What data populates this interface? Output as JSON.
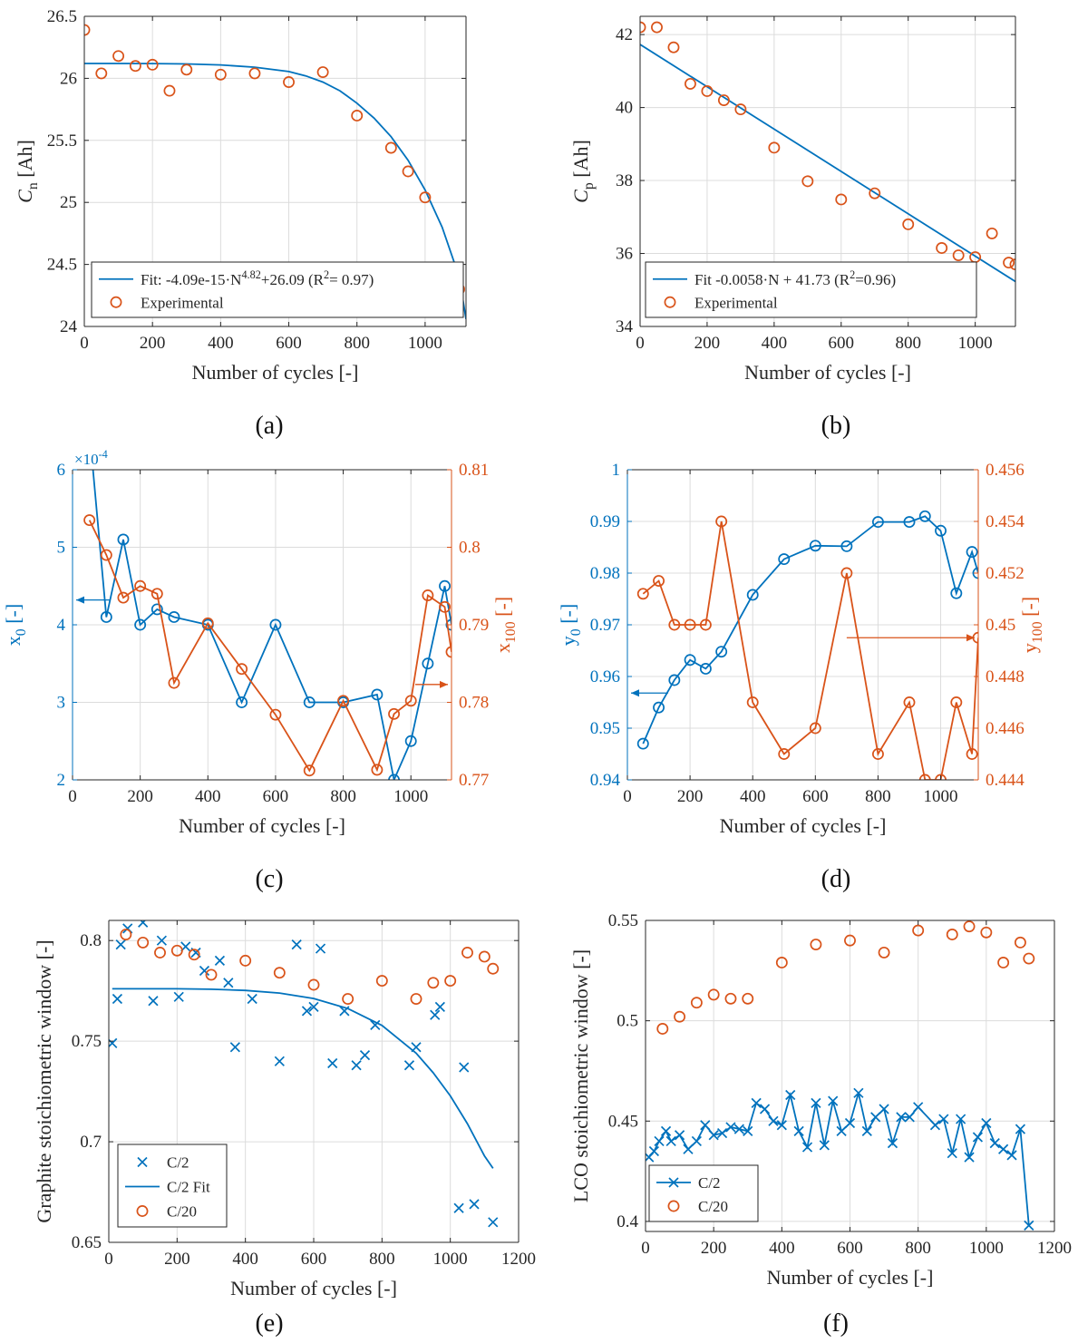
{
  "figure": {
    "colors": {
      "blue": "#0072BD",
      "orange": "#D95319",
      "axis": "#262626",
      "grid": "#dcdcdc"
    }
  },
  "chart_data": [
    {
      "id": "a",
      "panel_label": "(a)",
      "type": "scatter",
      "xlabel": "Number of cycles [-]",
      "ylabel": "C_n [Ah]",
      "xlim": [
        0,
        1120
      ],
      "ylim": [
        24,
        26.5
      ],
      "xticks": [
        0,
        200,
        400,
        600,
        800,
        1000
      ],
      "yticks": [
        24,
        24.5,
        25,
        25.5,
        26,
        26.5
      ],
      "ytick_labels": [
        "24",
        "24.5",
        "25",
        "25.5",
        "26",
        "26.5"
      ],
      "grid": true,
      "legend_position": "bottom-left",
      "series": [
        {
          "name": "Fit: -4.09e-15·N^4.82+26.09 (R^2= 0.97)",
          "kind": "line",
          "color": "#0072BD",
          "x": [
            0,
            100,
            200,
            300,
            400,
            500,
            600,
            650,
            700,
            750,
            800,
            850,
            900,
            950,
            1000,
            1050,
            1100,
            1120
          ],
          "y": [
            26.12,
            26.12,
            26.119,
            26.116,
            26.108,
            26.09,
            26.055,
            26.02,
            25.97,
            25.9,
            25.8,
            25.68,
            25.53,
            25.34,
            25.1,
            24.8,
            24.4,
            24.06
          ]
        },
        {
          "name": "Experimental",
          "kind": "points",
          "marker": "o",
          "color": "#D95319",
          "x": [
            0,
            50,
            100,
            150,
            200,
            250,
            300,
            400,
            500,
            600,
            700,
            800,
            900,
            950,
            1000,
            1050,
            1100
          ],
          "y": [
            26.39,
            26.04,
            26.18,
            26.1,
            26.11,
            25.9,
            26.07,
            26.03,
            26.04,
            25.97,
            26.05,
            25.7,
            25.44,
            25.25,
            25.04,
            24.36,
            24.3
          ]
        }
      ],
      "legend": [
        {
          "label": "Fit: -4.09e-15·N^4.82+26.09 (R^2= 0.97)",
          "type": "line"
        },
        {
          "label": "Experimental",
          "type": "circle"
        }
      ]
    },
    {
      "id": "b",
      "panel_label": "(b)",
      "type": "scatter",
      "xlabel": "Number of cycles [-]",
      "ylabel": "C_p [Ah]",
      "xlim": [
        0,
        1120
      ],
      "ylim": [
        34,
        42.5
      ],
      "xticks": [
        0,
        200,
        400,
        600,
        800,
        1000
      ],
      "yticks": [
        34,
        36,
        38,
        40,
        42
      ],
      "ytick_labels": [
        "34",
        "36",
        "38",
        "40",
        "42"
      ],
      "grid": true,
      "legend_position": "bottom-left",
      "series": [
        {
          "name": "Fit -0.0058·N + 41.73 (R^2=0.96)",
          "kind": "line",
          "color": "#0072BD",
          "x": [
            0,
            1120
          ],
          "y": [
            41.73,
            35.23
          ]
        },
        {
          "name": "Experimental",
          "kind": "points",
          "marker": "o",
          "color": "#D95319",
          "x": [
            0,
            50,
            100,
            150,
            200,
            250,
            300,
            400,
            500,
            600,
            700,
            800,
            900,
            950,
            1000,
            1050,
            1100,
            1120
          ],
          "y": [
            42.2,
            42.2,
            41.65,
            40.65,
            40.45,
            40.2,
            39.95,
            38.9,
            37.98,
            37.48,
            37.65,
            36.8,
            36.15,
            35.95,
            35.9,
            36.55,
            35.75,
            35.7
          ]
        }
      ],
      "legend": [
        {
          "label": "Fit -0.0058·N + 41.73 (R^2=0.96)",
          "type": "line"
        },
        {
          "label": "Experimental",
          "type": "circle"
        }
      ]
    },
    {
      "id": "c",
      "panel_label": "(c)",
      "type": "line",
      "xlabel": "Number of cycles [-]",
      "ylabel": "x_0 [-]",
      "ylabel_right": "x_100 [-]",
      "multiplier": "×10^-4",
      "xlim": [
        0,
        1120
      ],
      "ylim": [
        2,
        6
      ],
      "ylim_right": [
        0.77,
        0.81
      ],
      "xticks": [
        0,
        200,
        400,
        600,
        800,
        1000
      ],
      "yticks": [
        2,
        3,
        4,
        5,
        6
      ],
      "ytick_labels": [
        "2",
        "3",
        "4",
        "5",
        "6"
      ],
      "yticks_right": [
        0.77,
        0.78,
        0.79,
        0.8,
        0.81
      ],
      "ytick_labels_right": [
        "0.77",
        "0.78",
        "0.79",
        "0.8",
        "0.81"
      ],
      "grid": true,
      "series": [
        {
          "name": "x_0",
          "axis": "left",
          "kind": "line+points",
          "marker": "o",
          "color": "#0072BD",
          "x": [
            50,
            100,
            150,
            200,
            250,
            300,
            400,
            500,
            600,
            700,
            800,
            900,
            950,
            1000,
            1050,
            1100,
            1120
          ],
          "y": [
            6.5,
            4.1,
            5.1,
            4.0,
            4.2,
            4.1,
            4.0,
            3.0,
            4.0,
            3.0,
            3.0,
            3.1,
            2.0,
            2.5,
            3.5,
            4.5,
            4.0
          ]
        },
        {
          "name": "x_100",
          "axis": "right",
          "kind": "line+points",
          "marker": "o",
          "color": "#D95319",
          "x": [
            50,
            100,
            150,
            200,
            250,
            300,
            400,
            500,
            600,
            700,
            800,
            900,
            950,
            1000,
            1050,
            1100,
            1120
          ],
          "y": [
            0.8035,
            0.799,
            0.7935,
            0.795,
            0.794,
            0.7825,
            0.7902,
            0.7843,
            0.7784,
            0.7712,
            0.7802,
            0.7713,
            0.7785,
            0.7802,
            0.7938,
            0.7923,
            0.7865
          ]
        }
      ]
    },
    {
      "id": "d",
      "panel_label": "(d)",
      "type": "line",
      "xlabel": "Number of cycles [-]",
      "ylabel": "y_0 [-]",
      "ylabel_right": "y_100 [-]",
      "xlim": [
        0,
        1120
      ],
      "ylim": [
        0.94,
        1.0
      ],
      "ylim_right": [
        0.444,
        0.456
      ],
      "xticks": [
        0,
        200,
        400,
        600,
        800,
        1000
      ],
      "yticks": [
        0.94,
        0.95,
        0.96,
        0.97,
        0.98,
        0.99,
        1.0
      ],
      "ytick_labels": [
        "0.94",
        "0.95",
        "0.96",
        "0.97",
        "0.98",
        "0.99",
        "1"
      ],
      "yticks_right": [
        0.444,
        0.446,
        0.448,
        0.45,
        0.452,
        0.454,
        0.456
      ],
      "ytick_labels_right": [
        "0.444",
        "0.446",
        "0.448",
        "0.45",
        "0.452",
        "0.454",
        "0.456"
      ],
      "grid": true,
      "series": [
        {
          "name": "y_0",
          "axis": "left",
          "kind": "line+points",
          "marker": "o",
          "color": "#0072BD",
          "x": [
            50,
            100,
            150,
            200,
            250,
            300,
            400,
            500,
            600,
            700,
            800,
            900,
            950,
            1000,
            1050,
            1100,
            1120
          ],
          "y": [
            0.947,
            0.954,
            0.9593,
            0.9632,
            0.9615,
            0.9648,
            0.9758,
            0.9827,
            0.9853,
            0.9852,
            0.9899,
            0.9899,
            0.991,
            0.9882,
            0.9761,
            0.9841,
            0.98
          ]
        },
        {
          "name": "y_100",
          "axis": "right",
          "kind": "line+points",
          "marker": "o",
          "color": "#D95319",
          "x": [
            50,
            100,
            150,
            200,
            250,
            300,
            400,
            500,
            600,
            700,
            800,
            900,
            950,
            1000,
            1050,
            1100,
            1120
          ],
          "y": [
            0.4512,
            0.4517,
            0.45,
            0.45,
            0.45,
            0.454,
            0.447,
            0.445,
            0.446,
            0.452,
            0.445,
            0.447,
            0.444,
            0.444,
            0.447,
            0.445,
            0.4495
          ]
        }
      ]
    },
    {
      "id": "e",
      "panel_label": "(e)",
      "type": "scatter",
      "xlabel": "Number of cycles [-]",
      "ylabel": "Graphite stoichiometric window  [-]",
      "xlim": [
        0,
        1200
      ],
      "ylim": [
        0.65,
        0.81
      ],
      "xticks": [
        0,
        200,
        400,
        600,
        800,
        1000,
        1200
      ],
      "yticks": [
        0.65,
        0.7,
        0.75,
        0.8
      ],
      "ytick_labels": [
        "0.65",
        "0.7",
        "0.75",
        "0.8"
      ],
      "grid": true,
      "legend_position": "bottom-left",
      "series": [
        {
          "name": "C/2",
          "kind": "points",
          "marker": "x",
          "color": "#0072BD",
          "x": [
            10,
            25,
            35,
            55,
            100,
            130,
            155,
            205,
            225,
            255,
            280,
            325,
            350,
            370,
            420,
            500,
            550,
            580,
            600,
            620,
            655,
            690,
            725,
            750,
            780,
            880,
            900,
            955,
            970,
            1025,
            1040,
            1070,
            1125
          ],
          "y": [
            0.749,
            0.771,
            0.798,
            0.806,
            0.809,
            0.77,
            0.8,
            0.772,
            0.797,
            0.794,
            0.785,
            0.79,
            0.779,
            0.747,
            0.771,
            0.74,
            0.798,
            0.765,
            0.767,
            0.796,
            0.739,
            0.765,
            0.738,
            0.743,
            0.758,
            0.738,
            0.747,
            0.763,
            0.767,
            0.667,
            0.737,
            0.669,
            0.66
          ]
        },
        {
          "name": "C/2 Fit",
          "kind": "line",
          "color": "#0072BD",
          "x": [
            10,
            100,
            200,
            300,
            400,
            500,
            600,
            700,
            800,
            900,
            950,
            1000,
            1050,
            1100,
            1125
          ],
          "y": [
            0.776,
            0.776,
            0.776,
            0.7758,
            0.7752,
            0.7739,
            0.7712,
            0.7662,
            0.7578,
            0.744,
            0.7343,
            0.7228,
            0.709,
            0.693,
            0.6868
          ]
        },
        {
          "name": "C/20",
          "kind": "points",
          "marker": "o",
          "color": "#D95319",
          "x": [
            50,
            100,
            150,
            200,
            250,
            300,
            400,
            500,
            600,
            700,
            800,
            900,
            950,
            1000,
            1050,
            1100,
            1125
          ],
          "y": [
            0.803,
            0.799,
            0.794,
            0.795,
            0.793,
            0.783,
            0.79,
            0.784,
            0.778,
            0.771,
            0.78,
            0.771,
            0.779,
            0.78,
            0.794,
            0.792,
            0.786
          ]
        }
      ],
      "legend": [
        {
          "label": "C/2",
          "type": "x"
        },
        {
          "label": "C/2 Fit",
          "type": "line"
        },
        {
          "label": "C/20",
          "type": "circle"
        }
      ]
    },
    {
      "id": "f",
      "panel_label": "(f)",
      "type": "scatter",
      "xlabel": "Number of cycles [-]",
      "ylabel": "LCO stoichiometric window [-]",
      "xlim": [
        0,
        1200
      ],
      "ylim": [
        0.395,
        0.55
      ],
      "xticks": [
        0,
        200,
        400,
        600,
        800,
        1000,
        1200
      ],
      "yticks": [
        0.4,
        0.45,
        0.5,
        0.55
      ],
      "ytick_labels": [
        "0.4",
        "0.45",
        "0.5",
        "0.55"
      ],
      "grid": true,
      "legend_position": "bottom-left",
      "series": [
        {
          "name": "C/2",
          "kind": "line+points",
          "marker": "x",
          "color": "#0072BD",
          "x": [
            10,
            25,
            40,
            60,
            75,
            100,
            125,
            150,
            175,
            200,
            225,
            250,
            275,
            300,
            325,
            350,
            375,
            400,
            425,
            450,
            475,
            500,
            525,
            550,
            575,
            600,
            625,
            650,
            675,
            700,
            725,
            750,
            775,
            800,
            850,
            875,
            900,
            925,
            950,
            975,
            1000,
            1025,
            1050,
            1075,
            1100,
            1125
          ],
          "y": [
            0.432,
            0.435,
            0.44,
            0.445,
            0.44,
            0.443,
            0.436,
            0.44,
            0.448,
            0.443,
            0.444,
            0.447,
            0.446,
            0.445,
            0.459,
            0.456,
            0.45,
            0.448,
            0.463,
            0.445,
            0.437,
            0.459,
            0.438,
            0.46,
            0.445,
            0.449,
            0.464,
            0.445,
            0.452,
            0.456,
            0.439,
            0.452,
            0.452,
            0.457,
            0.448,
            0.451,
            0.434,
            0.451,
            0.432,
            0.442,
            0.449,
            0.439,
            0.436,
            0.433,
            0.446,
            0.398
          ]
        },
        {
          "name": "C/20",
          "kind": "points",
          "marker": "o",
          "color": "#D95319",
          "x": [
            50,
            100,
            150,
            200,
            250,
            300,
            400,
            500,
            600,
            700,
            800,
            900,
            950,
            1000,
            1050,
            1100,
            1125
          ],
          "y": [
            0.496,
            0.502,
            0.509,
            0.513,
            0.511,
            0.511,
            0.529,
            0.538,
            0.54,
            0.534,
            0.545,
            0.543,
            0.547,
            0.544,
            0.529,
            0.539,
            0.531
          ]
        }
      ],
      "legend": [
        {
          "label": "C/2",
          "type": "line+x"
        },
        {
          "label": "C/20",
          "type": "circle"
        }
      ]
    }
  ]
}
